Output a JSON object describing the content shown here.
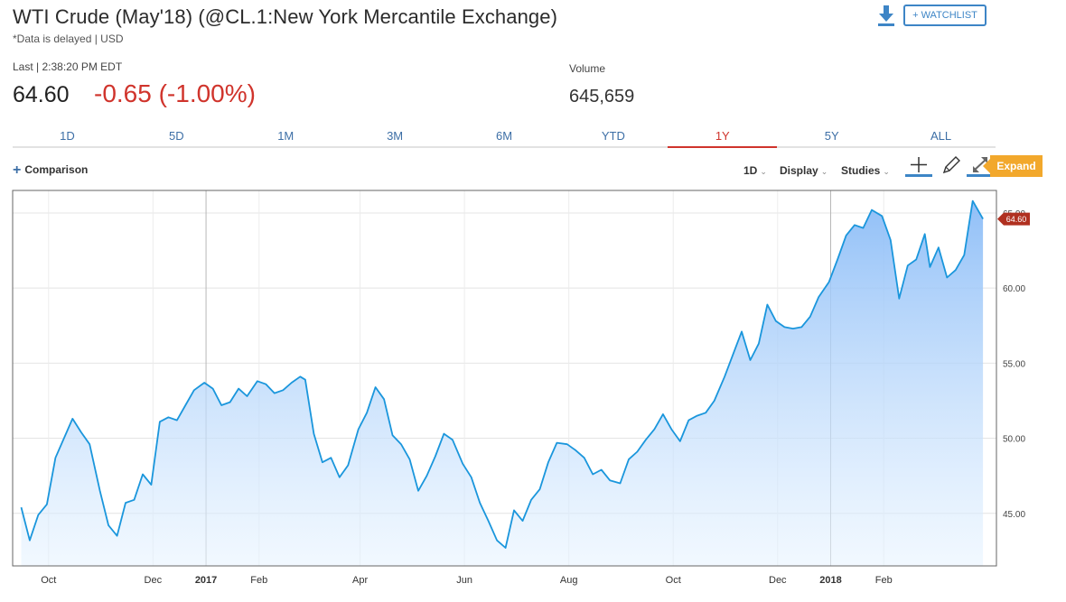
{
  "header": {
    "title": "WTI Crude (May'18) (@CL.1:New York Mercantile Exchange)",
    "delayed_note": "*Data is delayed | USD",
    "watchlist_label": "+ WATCHLIST"
  },
  "quote": {
    "last_label": "Last | 2:38:20 PM EDT",
    "last_price": "64.60",
    "change": "-0.65 (-1.00%)",
    "volume_label": "Volume",
    "volume_value": "645,659"
  },
  "range_tabs": [
    "1D",
    "5D",
    "1M",
    "3M",
    "6M",
    "YTD",
    "1Y",
    "5Y",
    "ALL"
  ],
  "active_range": "1Y",
  "toolbar": {
    "comparison_label": "Comparison",
    "interval_label": "1D",
    "display_label": "Display",
    "studies_label": "Studies",
    "expand_label": "Expand"
  },
  "colors": {
    "accent": "#3d85c6",
    "negative": "#d0342c",
    "line": "#1a96dc",
    "price_tag": "#b03020",
    "expand_tag": "#f2a82c"
  },
  "chart_data": {
    "type": "area",
    "current_price_label": "64.60",
    "ylim": [
      41.5,
      66.5
    ],
    "yticks": [
      45,
      50,
      55,
      60,
      65
    ],
    "ytick_labels": [
      "45.00",
      "50.00",
      "55.00",
      "60.00",
      "65.00"
    ],
    "xtick_labels": [
      "Oct",
      "Dec",
      "2017",
      "Feb",
      "Apr",
      "Jun",
      "Aug",
      "Oct",
      "Dec",
      "2018",
      "Feb"
    ],
    "grid": true,
    "x": [
      "2016-09-15",
      "2016-09-20",
      "2016-09-25",
      "2016-09-30",
      "2016-10-05",
      "2016-10-10",
      "2016-10-15",
      "2016-10-20",
      "2016-10-25",
      "2016-10-31",
      "2016-11-05",
      "2016-11-10",
      "2016-11-15",
      "2016-11-20",
      "2016-11-25",
      "2016-11-30",
      "2016-12-05",
      "2016-12-10",
      "2016-12-15",
      "2016-12-20",
      "2016-12-25",
      "2016-12-31",
      "2017-01-05",
      "2017-01-10",
      "2017-01-15",
      "2017-01-20",
      "2017-01-25",
      "2017-01-31",
      "2017-02-05",
      "2017-02-10",
      "2017-02-15",
      "2017-02-20",
      "2017-02-25",
      "2017-02-28",
      "2017-03-05",
      "2017-03-10",
      "2017-03-15",
      "2017-03-20",
      "2017-03-25",
      "2017-03-31",
      "2017-04-05",
      "2017-04-10",
      "2017-04-15",
      "2017-04-20",
      "2017-04-25",
      "2017-04-30",
      "2017-05-05",
      "2017-05-10",
      "2017-05-15",
      "2017-05-20",
      "2017-05-25",
      "2017-05-31",
      "2017-06-05",
      "2017-06-10",
      "2017-06-15",
      "2017-06-20",
      "2017-06-25",
      "2017-06-30",
      "2017-07-05",
      "2017-07-10",
      "2017-07-15",
      "2017-07-20",
      "2017-07-25",
      "2017-07-31",
      "2017-08-05",
      "2017-08-10",
      "2017-08-15",
      "2017-08-20",
      "2017-08-25",
      "2017-08-31",
      "2017-09-05",
      "2017-09-10",
      "2017-09-15",
      "2017-09-20",
      "2017-09-25",
      "2017-09-30",
      "2017-10-05",
      "2017-10-10",
      "2017-10-15",
      "2017-10-20",
      "2017-10-25",
      "2017-10-31",
      "2017-11-05",
      "2017-11-10",
      "2017-11-15",
      "2017-11-20",
      "2017-11-25",
      "2017-11-30",
      "2017-12-05",
      "2017-12-10",
      "2017-12-15",
      "2017-12-20",
      "2017-12-25",
      "2017-12-31",
      "2018-01-05",
      "2018-01-10",
      "2018-01-15",
      "2018-01-20",
      "2018-01-25",
      "2018-01-31",
      "2018-02-05",
      "2018-02-10",
      "2018-02-15",
      "2018-02-20",
      "2018-02-25",
      "2018-02-28",
      "2018-03-05",
      "2018-03-10",
      "2018-03-15",
      "2018-03-20",
      "2018-03-25",
      "2018-03-31"
    ],
    "series": [
      {
        "values": [
          45.4,
          43.2,
          44.9,
          45.6,
          48.7,
          50.0,
          51.3,
          50.4,
          49.6,
          46.5,
          44.2,
          43.5,
          45.7,
          45.9,
          47.6,
          46.9,
          51.1,
          51.4,
          51.2,
          52.2,
          53.2,
          53.7,
          53.3,
          52.2,
          52.4,
          53.3,
          52.8,
          53.8,
          53.6,
          53.0,
          53.2,
          53.7,
          54.1,
          53.9,
          50.3,
          48.4,
          48.7,
          47.4,
          48.2,
          50.6,
          51.7,
          53.4,
          52.6,
          50.2,
          49.6,
          48.6,
          46.5,
          47.5,
          48.8,
          50.3,
          49.9,
          48.3,
          47.4,
          45.7,
          44.5,
          43.2,
          42.7,
          45.2,
          44.5,
          45.9,
          46.6,
          48.4,
          49.7,
          49.6,
          49.2,
          48.7,
          47.6,
          47.9,
          47.2,
          47.0,
          48.6,
          49.1,
          49.9,
          50.6,
          51.6,
          50.6,
          49.8,
          51.2,
          51.5,
          51.7,
          52.5,
          54.1,
          55.6,
          57.1,
          55.2,
          56.3,
          58.9,
          57.8,
          57.4,
          57.3,
          57.4,
          58.1,
          59.4,
          60.4,
          61.9,
          63.5,
          64.2,
          64.0,
          65.2,
          64.8,
          63.2,
          59.3,
          61.5,
          61.9,
          63.6,
          61.4,
          62.7,
          60.7,
          61.2,
          62.2,
          65.8,
          64.6
        ]
      }
    ]
  }
}
